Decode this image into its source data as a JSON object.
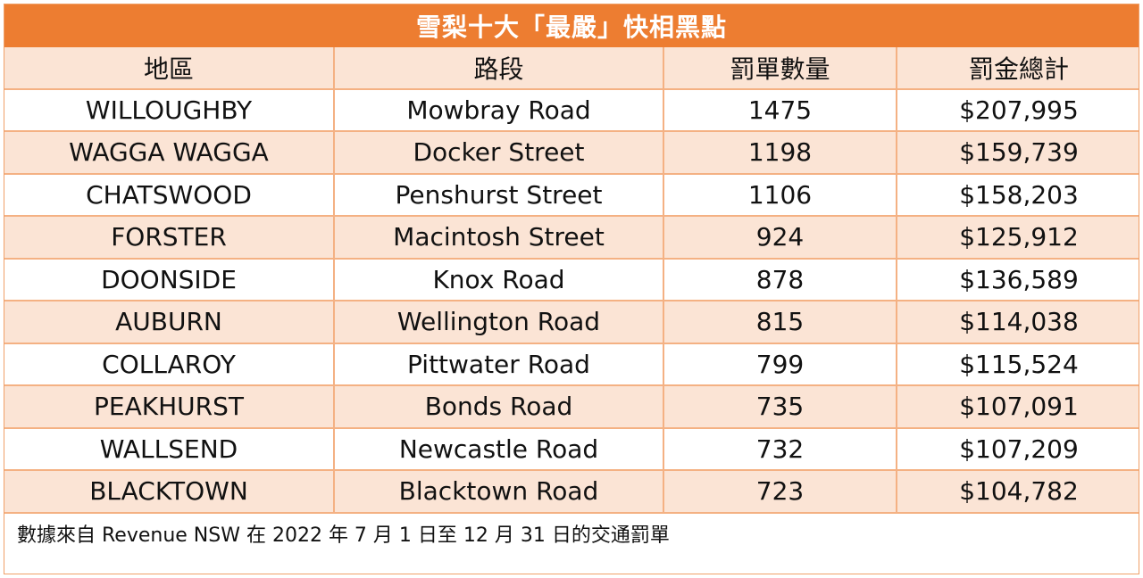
{
  "title": "雪梨十大「最嚴」快相黑點",
  "colors": {
    "title_bg": "#ed7d31",
    "header_bg": "#fbe4d5",
    "row_alt_bg": "#fbe4d5",
    "border": "#f4b183"
  },
  "table": {
    "headers": [
      "地區",
      "路段",
      "罰單數量",
      "罰金總計"
    ],
    "rows": [
      [
        "WILLOUGHBY",
        "Mowbray Road",
        "1475",
        "$207,995"
      ],
      [
        "WAGGA WAGGA",
        "Docker Street",
        "1198",
        "$159,739"
      ],
      [
        "CHATSWOOD",
        "Penshurst Street",
        "1106",
        "$158,203"
      ],
      [
        "FORSTER",
        "Macintosh Street",
        "924",
        "$125,912"
      ],
      [
        "DOONSIDE",
        "Knox Road",
        "878",
        "$136,589"
      ],
      [
        "AUBURN",
        "Wellington Road",
        "815",
        "$114,038"
      ],
      [
        "COLLAROY",
        "Pittwater Road",
        "799",
        "$115,524"
      ],
      [
        "PEAKHURST",
        "Bonds Road",
        "735",
        "$107,091"
      ],
      [
        "WALLSEND",
        "Newcastle Road",
        "732",
        "$107,209"
      ],
      [
        "BLACKTOWN",
        "Blacktown Road",
        "723",
        "$104,782"
      ]
    ]
  },
  "footer": "數據來自 Revenue NSW 在 2022 年 7 月 1 日至 12 月 31 日的交通罰單"
}
